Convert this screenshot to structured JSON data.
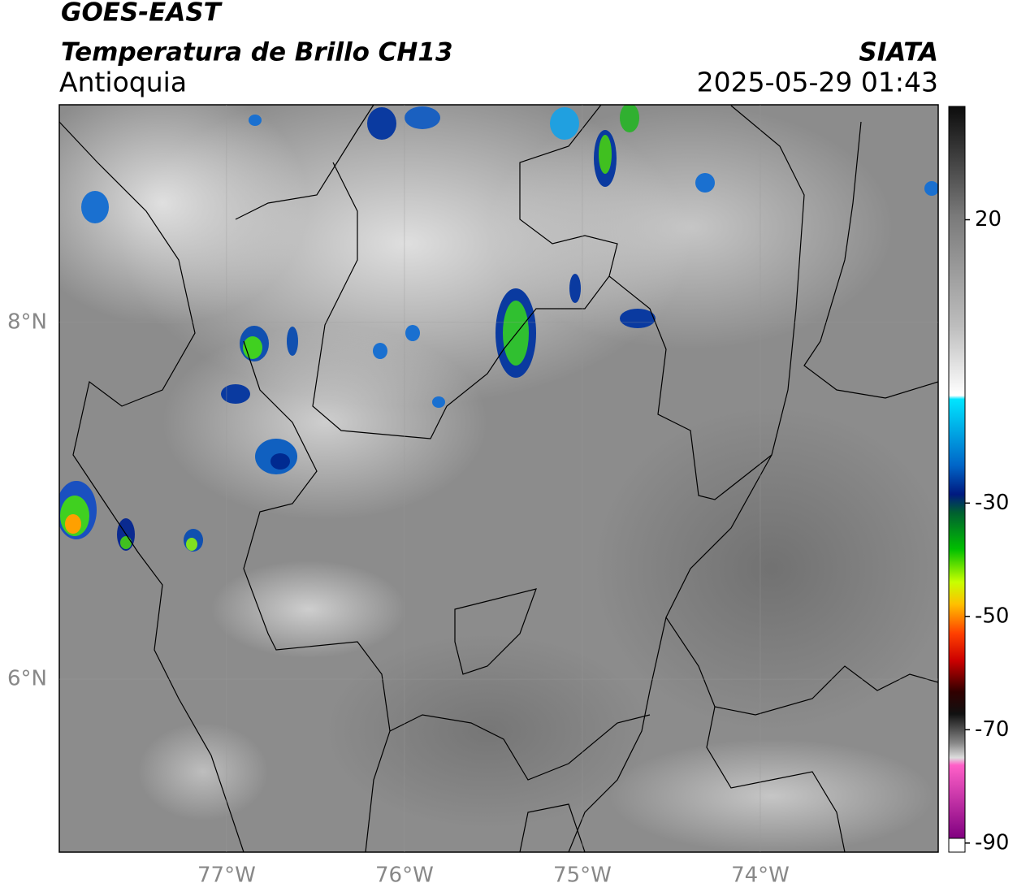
{
  "header": {
    "satellite": "GOES-EAST",
    "product": "Temperatura de Brillo CH13",
    "region": "Antioquia",
    "agency": "SIATA",
    "timestamp": "2025-05-29 01:43"
  },
  "map": {
    "lonlim": [
      -77.94,
      -73.0
    ],
    "latlim": [
      5.03,
      9.22
    ],
    "lonticks": [
      {
        "value": -77,
        "label": "77°W"
      },
      {
        "value": -76,
        "label": "76°W"
      },
      {
        "value": -75,
        "label": "75°W"
      },
      {
        "value": -74,
        "label": "74°W"
      }
    ],
    "latticks": [
      {
        "value": 6,
        "label": "6°N"
      },
      {
        "value": 8,
        "label": "8°N"
      }
    ]
  },
  "colorbar": {
    "lim": [
      -91.6,
      40
    ],
    "ticks": [
      20,
      -30,
      -50,
      -70,
      -90
    ]
  }
}
